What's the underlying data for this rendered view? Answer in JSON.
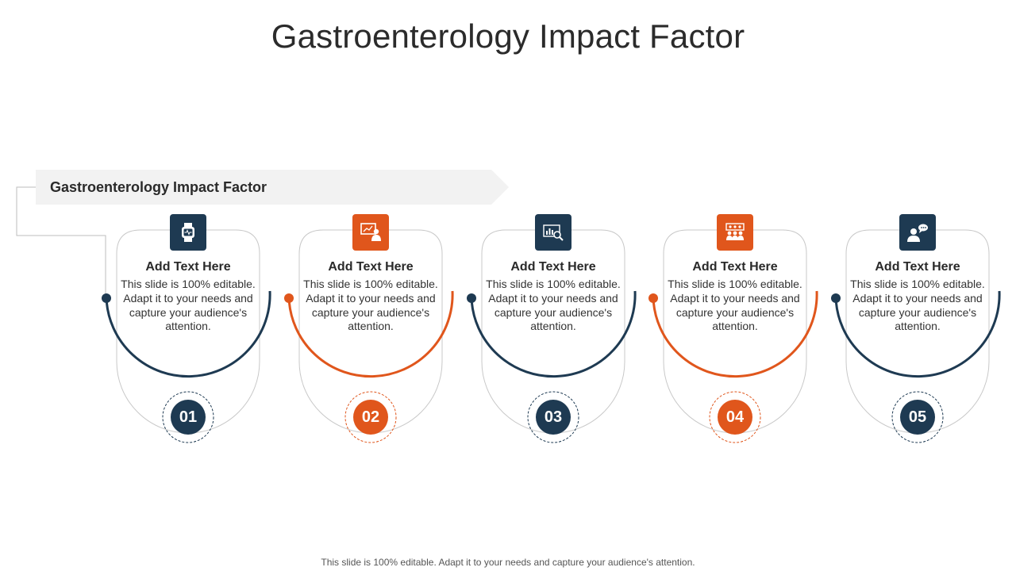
{
  "title": "Gastroenterology Impact Factor",
  "banner": {
    "label": "Gastroenterology Impact Factor"
  },
  "colors": {
    "navy": "#1e3a52",
    "orange": "#e0561c",
    "outline": "#c8c8c8",
    "banner_bg": "#f2f2f2"
  },
  "steps": [
    {
      "heading": "Add  Text Here",
      "body": "This slide is 100% editable. Adapt it to your needs and capture your audience's attention.",
      "number": "01",
      "color": "navy",
      "icon": "smartwatch-icon"
    },
    {
      "heading": "Add  Text Here",
      "body": "This slide is 100% editable. Adapt it to your needs and capture your audience's attention.",
      "number": "02",
      "color": "orange",
      "icon": "presentation-icon"
    },
    {
      "heading": "Add  Text Here",
      "body": "This slide is 100% editable. Adapt it to your needs and capture your audience's attention.",
      "number": "03",
      "color": "navy",
      "icon": "chart-search-icon"
    },
    {
      "heading": "Add  Text Here",
      "body": "This slide is 100% editable. Adapt it to your needs and capture your audience's attention.",
      "number": "04",
      "color": "orange",
      "icon": "team-meeting-icon"
    },
    {
      "heading": "Add  Text Here",
      "body": "This slide is 100% editable. Adapt it to your needs and capture your audience's attention.",
      "number": "05",
      "color": "navy",
      "icon": "person-chat-icon"
    }
  ],
  "footer": "This slide is 100% editable. Adapt it to your needs and capture your audience's attention."
}
